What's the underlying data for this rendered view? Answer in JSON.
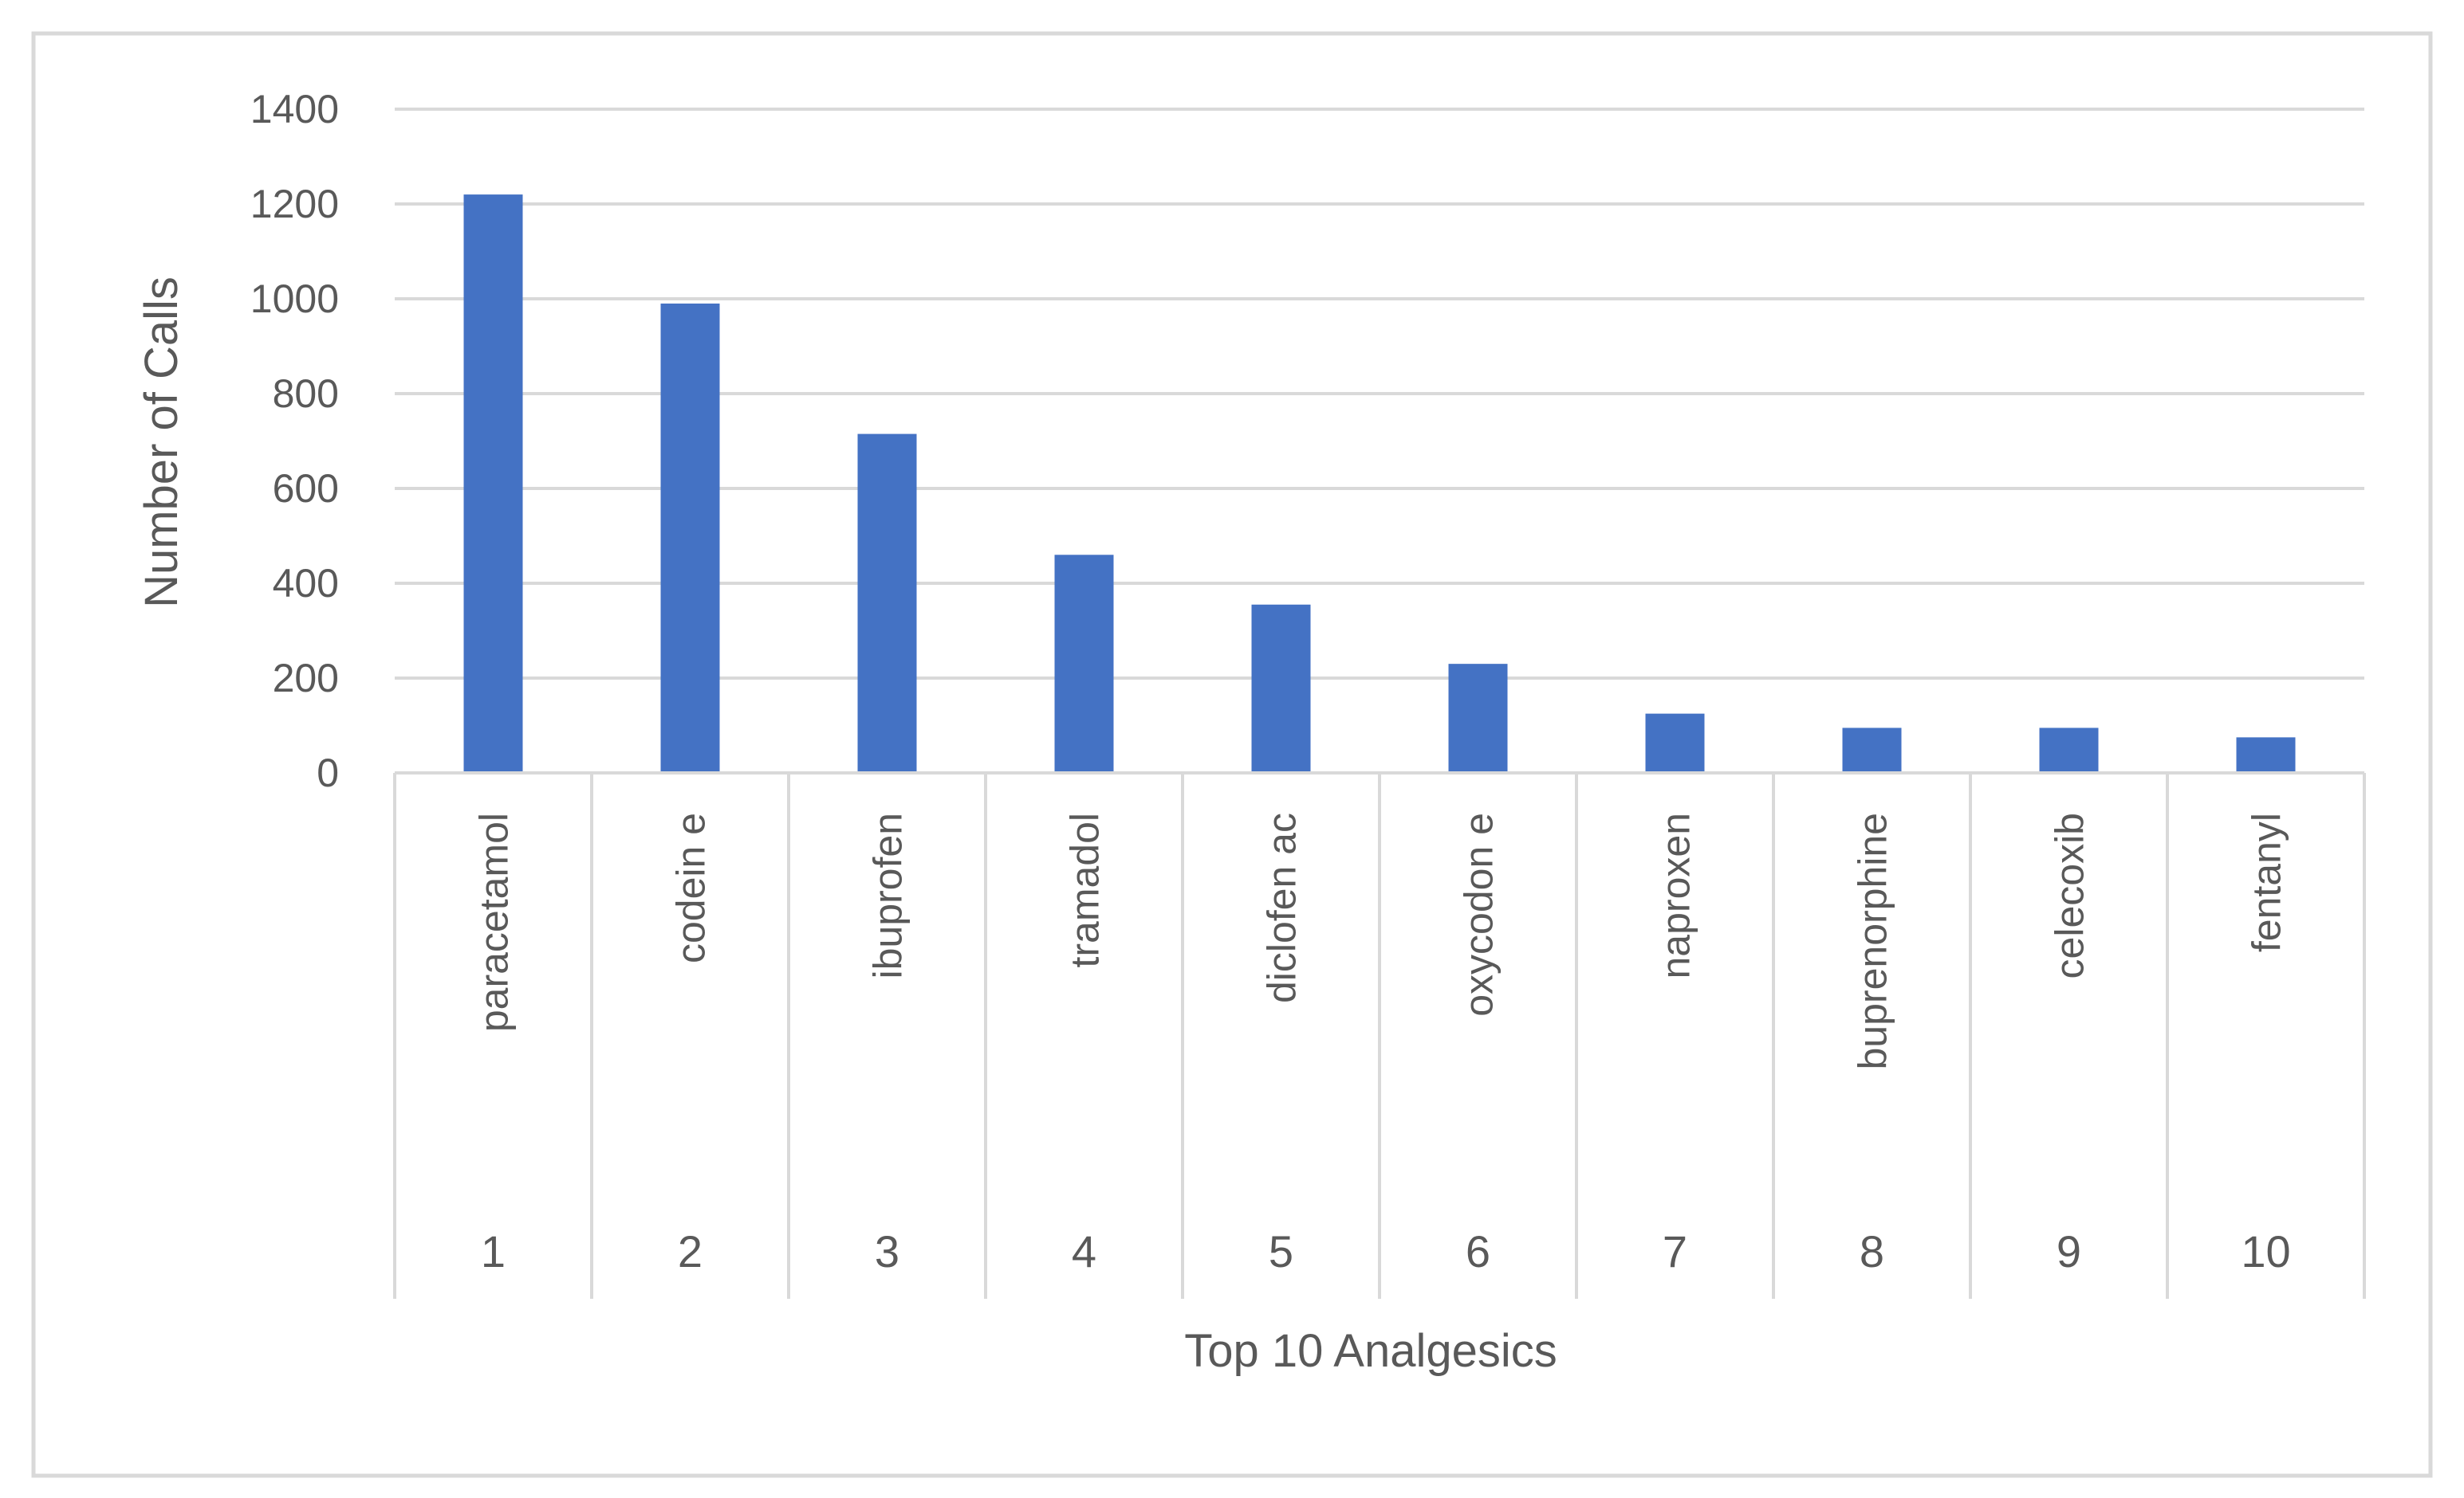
{
  "chart_data": {
    "type": "bar",
    "title": "",
    "xlabel": "Top 10 Analgesics",
    "ylabel": "Number of Calls",
    "ylim": [
      0,
      1400
    ],
    "yticks": [
      0,
      200,
      400,
      600,
      800,
      1000,
      1200,
      1400
    ],
    "grid": true,
    "legend": "none",
    "colors": {
      "bar": "#4472C4",
      "grid": "#D9D9D9",
      "text": "#595959",
      "frame": "#D9D9D9"
    },
    "categories": [
      {
        "index": "1",
        "name": "paracetamol"
      },
      {
        "index": "2",
        "name": "codein e"
      },
      {
        "index": "3",
        "name": "ibuprofen"
      },
      {
        "index": "4",
        "name": "tramadol"
      },
      {
        "index": "5",
        "name": "diclofen ac"
      },
      {
        "index": "6",
        "name": "oxycodon e"
      },
      {
        "index": "7",
        "name": "naproxen"
      },
      {
        "index": "8",
        "name": "buprenorphine"
      },
      {
        "index": "9",
        "name": "celecoxib"
      },
      {
        "index": "10",
        "name": "fentanyl"
      }
    ],
    "values": [
      1220,
      990,
      715,
      460,
      355,
      230,
      125,
      95,
      95,
      75
    ]
  }
}
